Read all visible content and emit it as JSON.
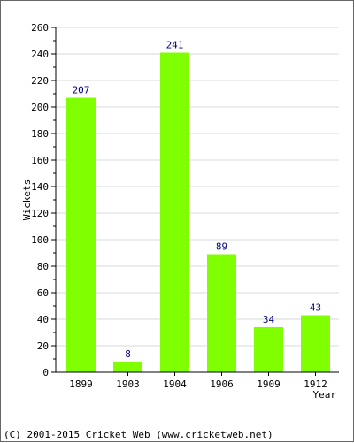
{
  "chart_data": {
    "type": "bar",
    "categories": [
      "1899",
      "1903",
      "1904",
      "1906",
      "1909",
      "1912"
    ],
    "values": [
      207,
      8,
      241,
      89,
      34,
      43
    ],
    "title": "",
    "xlabel": "Year",
    "ylabel": "Wickets",
    "ylim": [
      0,
      260
    ],
    "yticks": [
      0,
      20,
      40,
      60,
      80,
      100,
      120,
      140,
      160,
      180,
      200,
      220,
      240,
      260
    ],
    "grid": true,
    "legend": "none",
    "bar_color": "#80ff00",
    "value_label_color": "#000080"
  },
  "footer": {
    "text": "(C) 2001-2015 Cricket Web (www.cricketweb.net)"
  }
}
